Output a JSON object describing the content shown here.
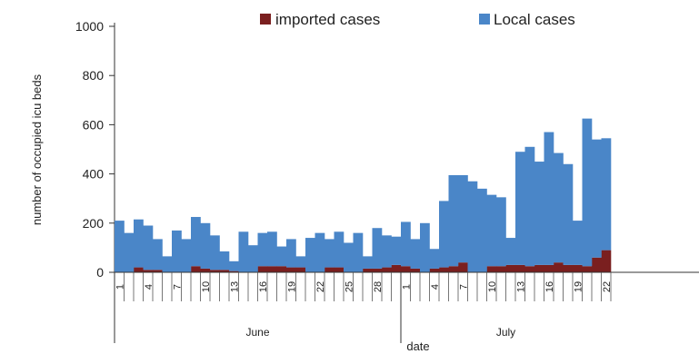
{
  "chart_data": {
    "type": "bar",
    "stacked": true,
    "xlabel": "date",
    "ylabel": "number of occupied icu beds",
    "ylim": [
      0,
      1000
    ],
    "yticks": [
      0,
      200,
      400,
      600,
      800,
      1000
    ],
    "legend": {
      "placement": "top",
      "entries": [
        "imported cases",
        "Local cases"
      ]
    },
    "months": [
      {
        "name": "June",
        "days": 30
      },
      {
        "name": "July",
        "days": 22
      }
    ],
    "day_tick_labels": [
      {
        "index": 0,
        "label": "1"
      },
      {
        "index": 3,
        "label": "4"
      },
      {
        "index": 6,
        "label": "7"
      },
      {
        "index": 9,
        "label": "10"
      },
      {
        "index": 12,
        "label": "13"
      },
      {
        "index": 15,
        "label": "16"
      },
      {
        "index": 18,
        "label": "19"
      },
      {
        "index": 21,
        "label": "22"
      },
      {
        "index": 24,
        "label": "25"
      },
      {
        "index": 27,
        "label": "28"
      },
      {
        "index": 30,
        "label": "1"
      },
      {
        "index": 33,
        "label": "4"
      },
      {
        "index": 36,
        "label": "7"
      },
      {
        "index": 39,
        "label": "10"
      },
      {
        "index": 42,
        "label": "13"
      },
      {
        "index": 45,
        "label": "16"
      },
      {
        "index": 48,
        "label": "19"
      },
      {
        "index": 51,
        "label": "22"
      }
    ],
    "series": [
      {
        "name": "imported cases",
        "color": "#7a1f1f",
        "values": [
          0,
          0,
          20,
          10,
          10,
          0,
          0,
          0,
          25,
          15,
          10,
          10,
          5,
          0,
          0,
          25,
          25,
          25,
          20,
          20,
          0,
          0,
          20,
          20,
          0,
          0,
          15,
          15,
          20,
          30,
          25,
          15,
          0,
          15,
          20,
          25,
          40,
          0,
          0,
          25,
          25,
          30,
          30,
          25,
          30,
          30,
          40,
          30,
          30,
          25,
          60,
          90
        ]
      },
      {
        "name": "Local cases",
        "color": "#4a86c8",
        "values": [
          210,
          160,
          195,
          180,
          125,
          65,
          170,
          135,
          200,
          185,
          140,
          75,
          40,
          165,
          110,
          135,
          140,
          80,
          115,
          45,
          140,
          160,
          115,
          145,
          120,
          160,
          50,
          165,
          130,
          115,
          180,
          120,
          200,
          80,
          270,
          370,
          355,
          370,
          340,
          290,
          280,
          110,
          460,
          485,
          420,
          540,
          445,
          410,
          180,
          600,
          480,
          455
        ]
      }
    ]
  }
}
